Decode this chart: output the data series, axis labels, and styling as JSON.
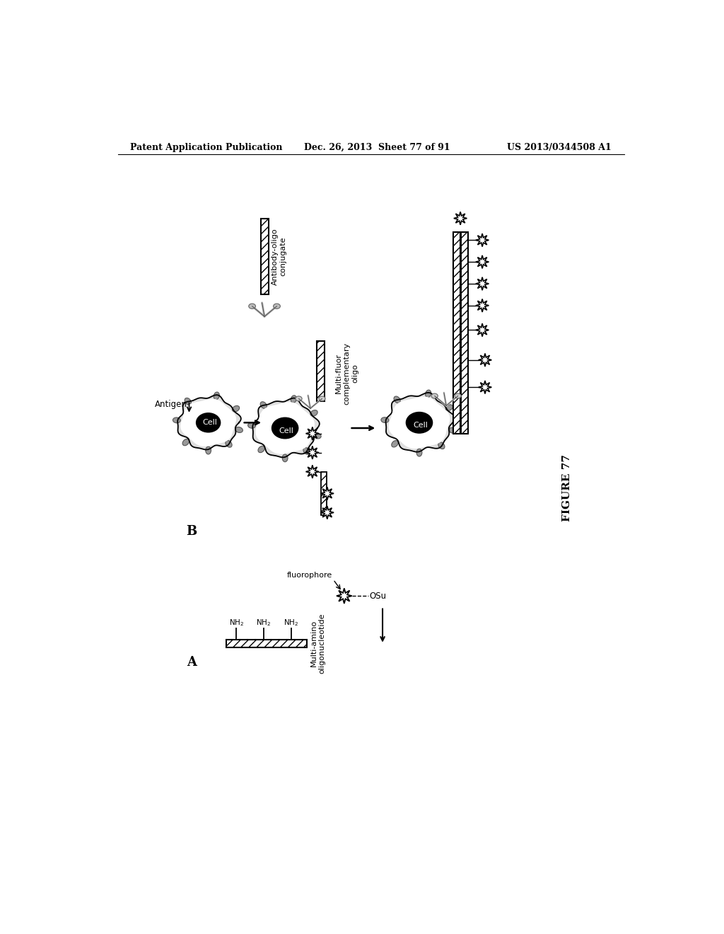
{
  "header_left": "Patent Application Publication",
  "header_mid": "Dec. 26, 2013  Sheet 77 of 91",
  "header_right": "US 2013/0344508 A1",
  "figure_label": "FIGURE 77",
  "background_color": "#ffffff",
  "text_color": "#000000"
}
